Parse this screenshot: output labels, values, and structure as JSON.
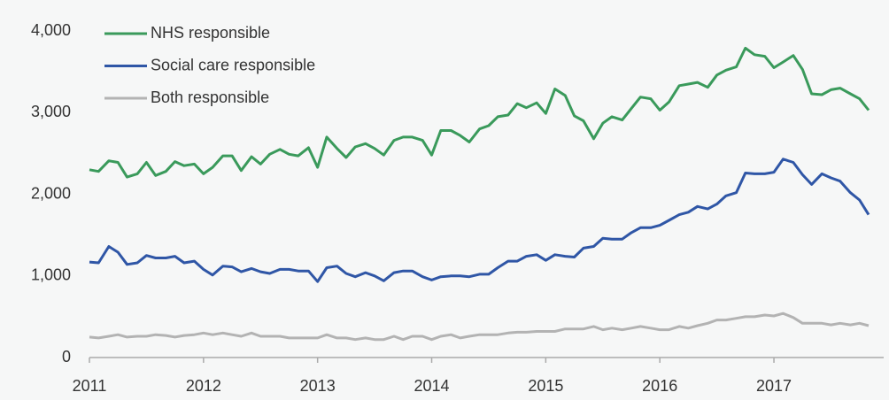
{
  "chart_data": {
    "type": "line",
    "x": [
      2011,
      2011.08,
      2011.17,
      2011.25,
      2011.33,
      2011.42,
      2011.5,
      2011.58,
      2011.67,
      2011.75,
      2011.83,
      2011.92,
      2012,
      2012.08,
      2012.17,
      2012.25,
      2012.33,
      2012.42,
      2012.5,
      2012.58,
      2012.67,
      2012.75,
      2012.83,
      2012.92,
      2013,
      2013.08,
      2013.17,
      2013.25,
      2013.33,
      2013.42,
      2013.5,
      2013.58,
      2013.67,
      2013.75,
      2013.83,
      2013.92,
      2014,
      2014.08,
      2014.17,
      2014.25,
      2014.33,
      2014.42,
      2014.5,
      2014.58,
      2014.67,
      2014.75,
      2014.83,
      2014.92,
      2015,
      2015.08,
      2015.17,
      2015.25,
      2015.33,
      2015.42,
      2015.5,
      2015.58,
      2015.67,
      2015.75,
      2015.83,
      2015.92,
      2016,
      2016.08,
      2016.17,
      2016.25,
      2016.33,
      2016.42,
      2016.5,
      2016.58,
      2016.67,
      2016.75,
      2016.83,
      2016.92,
      2017,
      2017.08,
      2017.17,
      2017.25,
      2017.33,
      2017.42,
      2017.5,
      2017.58,
      2017.67,
      2017.75,
      2017.83
    ],
    "series": [
      {
        "name": "NHS responsible",
        "color": "#3a9a5b",
        "values": [
          2300,
          2280,
          2410,
          2390,
          2210,
          2250,
          2390,
          2230,
          2280,
          2400,
          2350,
          2370,
          2250,
          2330,
          2470,
          2470,
          2290,
          2460,
          2370,
          2490,
          2550,
          2490,
          2470,
          2570,
          2330,
          2700,
          2560,
          2450,
          2580,
          2620,
          2560,
          2480,
          2660,
          2700,
          2700,
          2660,
          2480,
          2780,
          2780,
          2720,
          2640,
          2800,
          2840,
          2950,
          2970,
          3110,
          3060,
          3120,
          2990,
          3290,
          3210,
          2960,
          2900,
          2680,
          2870,
          2950,
          2910,
          3050,
          3190,
          3170,
          3030,
          3130,
          3330,
          3350,
          3370,
          3310,
          3460,
          3520,
          3560,
          3790,
          3710,
          3690,
          3550,
          3620,
          3700,
          3530,
          3230,
          3220,
          3280,
          3300,
          3230,
          3170,
          3030
        ]
      },
      {
        "name": "Social care responsible",
        "color": "#2f56a6",
        "values": [
          1170,
          1160,
          1360,
          1290,
          1140,
          1160,
          1250,
          1220,
          1220,
          1240,
          1160,
          1180,
          1080,
          1010,
          1120,
          1110,
          1050,
          1090,
          1050,
          1030,
          1080,
          1080,
          1060,
          1060,
          930,
          1100,
          1120,
          1030,
          990,
          1040,
          1000,
          940,
          1040,
          1060,
          1060,
          990,
          950,
          990,
          1000,
          1000,
          990,
          1020,
          1020,
          1100,
          1180,
          1180,
          1240,
          1260,
          1190,
          1260,
          1240,
          1230,
          1340,
          1360,
          1460,
          1450,
          1450,
          1530,
          1590,
          1590,
          1620,
          1680,
          1750,
          1780,
          1850,
          1820,
          1880,
          1980,
          2020,
          2260,
          2250,
          2250,
          2270,
          2430,
          2390,
          2240,
          2120,
          2250,
          2200,
          2160,
          2020,
          1930,
          1750
        ]
      },
      {
        "name": "Both responsible",
        "color": "#b3b3b3",
        "values": [
          250,
          240,
          260,
          280,
          250,
          260,
          260,
          280,
          270,
          250,
          270,
          280,
          300,
          280,
          300,
          280,
          260,
          300,
          260,
          260,
          260,
          240,
          240,
          240,
          240,
          280,
          240,
          240,
          220,
          240,
          220,
          220,
          260,
          220,
          260,
          260,
          220,
          260,
          280,
          240,
          260,
          280,
          280,
          280,
          300,
          310,
          310,
          320,
          320,
          320,
          350,
          350,
          350,
          380,
          340,
          360,
          340,
          360,
          380,
          360,
          340,
          340,
          380,
          360,
          390,
          420,
          460,
          460,
          480,
          500,
          500,
          520,
          510,
          540,
          490,
          420,
          420,
          420,
          400,
          420,
          400,
          420,
          390
        ]
      }
    ],
    "xlim": [
      2011,
      2017.9
    ],
    "xticks": [
      2011,
      2012,
      2013,
      2014,
      2015,
      2016,
      2017
    ],
    "ylim": [
      0,
      4000
    ],
    "yticks": [
      0,
      {
        "value": 1000,
        "label": "1,000"
      },
      {
        "value": 2000,
        "label": "2,000"
      },
      {
        "value": 3000,
        "label": "3,000"
      },
      {
        "value": 4000,
        "label": "4,000"
      }
    ],
    "grid": false,
    "legend": "upper-left"
  }
}
